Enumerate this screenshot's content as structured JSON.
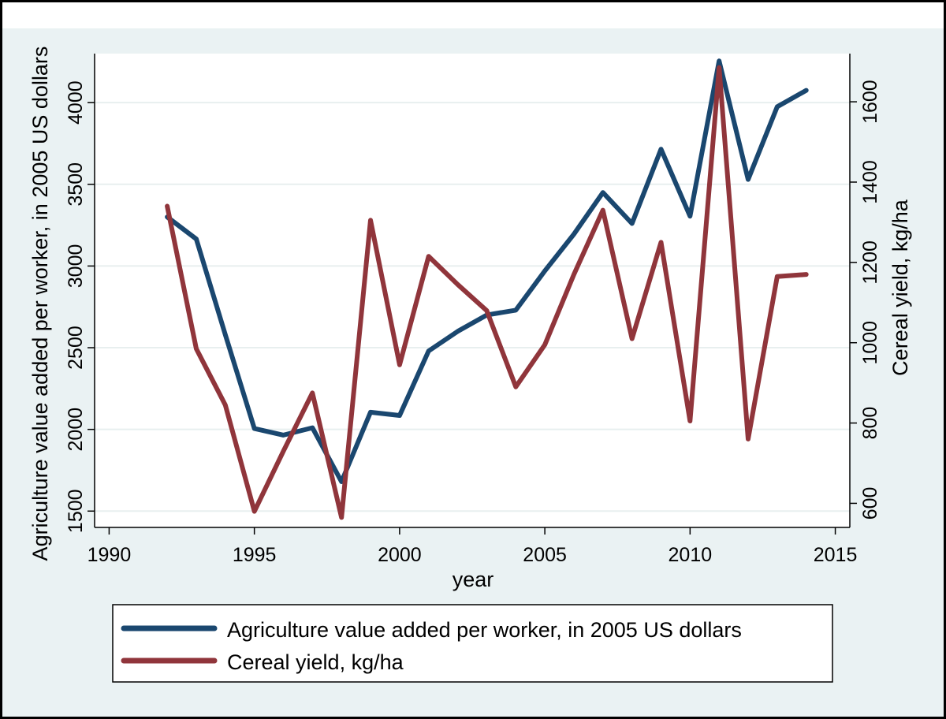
{
  "chart_data": {
    "type": "line",
    "xlabel": "year",
    "ylabel_left": "Agriculture value added per worker, in 2005 US dollars",
    "ylabel_right": "Cereal yield, kg/ha",
    "xlim": [
      1989.5,
      2015.5
    ],
    "ylim_left": [
      1400,
      4300
    ],
    "ylim_right": [
      540,
      1720
    ],
    "x_ticks": [
      1990,
      1995,
      2000,
      2005,
      2010,
      2015
    ],
    "y_left_ticks": [
      1500,
      2000,
      2500,
      3000,
      3500,
      4000
    ],
    "y_right_ticks": [
      600,
      800,
      1000,
      1200,
      1400,
      1600
    ],
    "grid": true,
    "legend_position": "bottom",
    "series": [
      {
        "name": "Agriculture value added per worker, in 2005 US dollars",
        "axis": "left",
        "color": "#1a476f",
        "x": [
          1992,
          1993,
          1994,
          1995,
          1996,
          1997,
          1998,
          1999,
          2000,
          2001,
          2002,
          2003,
          2004,
          2005,
          2006,
          2007,
          2008,
          2009,
          2010,
          2011,
          2012,
          2013,
          2014
        ],
        "values": [
          3300,
          3165,
          2580,
          2005,
          1965,
          2010,
          1680,
          2105,
          2085,
          2480,
          2600,
          2700,
          2730,
          2970,
          3195,
          3450,
          3260,
          3715,
          3305,
          4255,
          3530,
          3975,
          4075
        ]
      },
      {
        "name": "Cereal yield, kg/ha",
        "axis": "right",
        "color": "#90353b",
        "x": [
          1992,
          1993,
          1994,
          1995,
          1996,
          1997,
          1998,
          1999,
          2000,
          2001,
          2002,
          2003,
          2004,
          2005,
          2006,
          2007,
          2008,
          2009,
          2010,
          2011,
          2012,
          2013,
          2014
        ],
        "values": [
          1340,
          985,
          845,
          580,
          730,
          875,
          565,
          1305,
          945,
          1215,
          1145,
          1080,
          890,
          995,
          1170,
          1330,
          1010,
          1250,
          805,
          1685,
          760,
          1165,
          1170
        ]
      }
    ]
  }
}
